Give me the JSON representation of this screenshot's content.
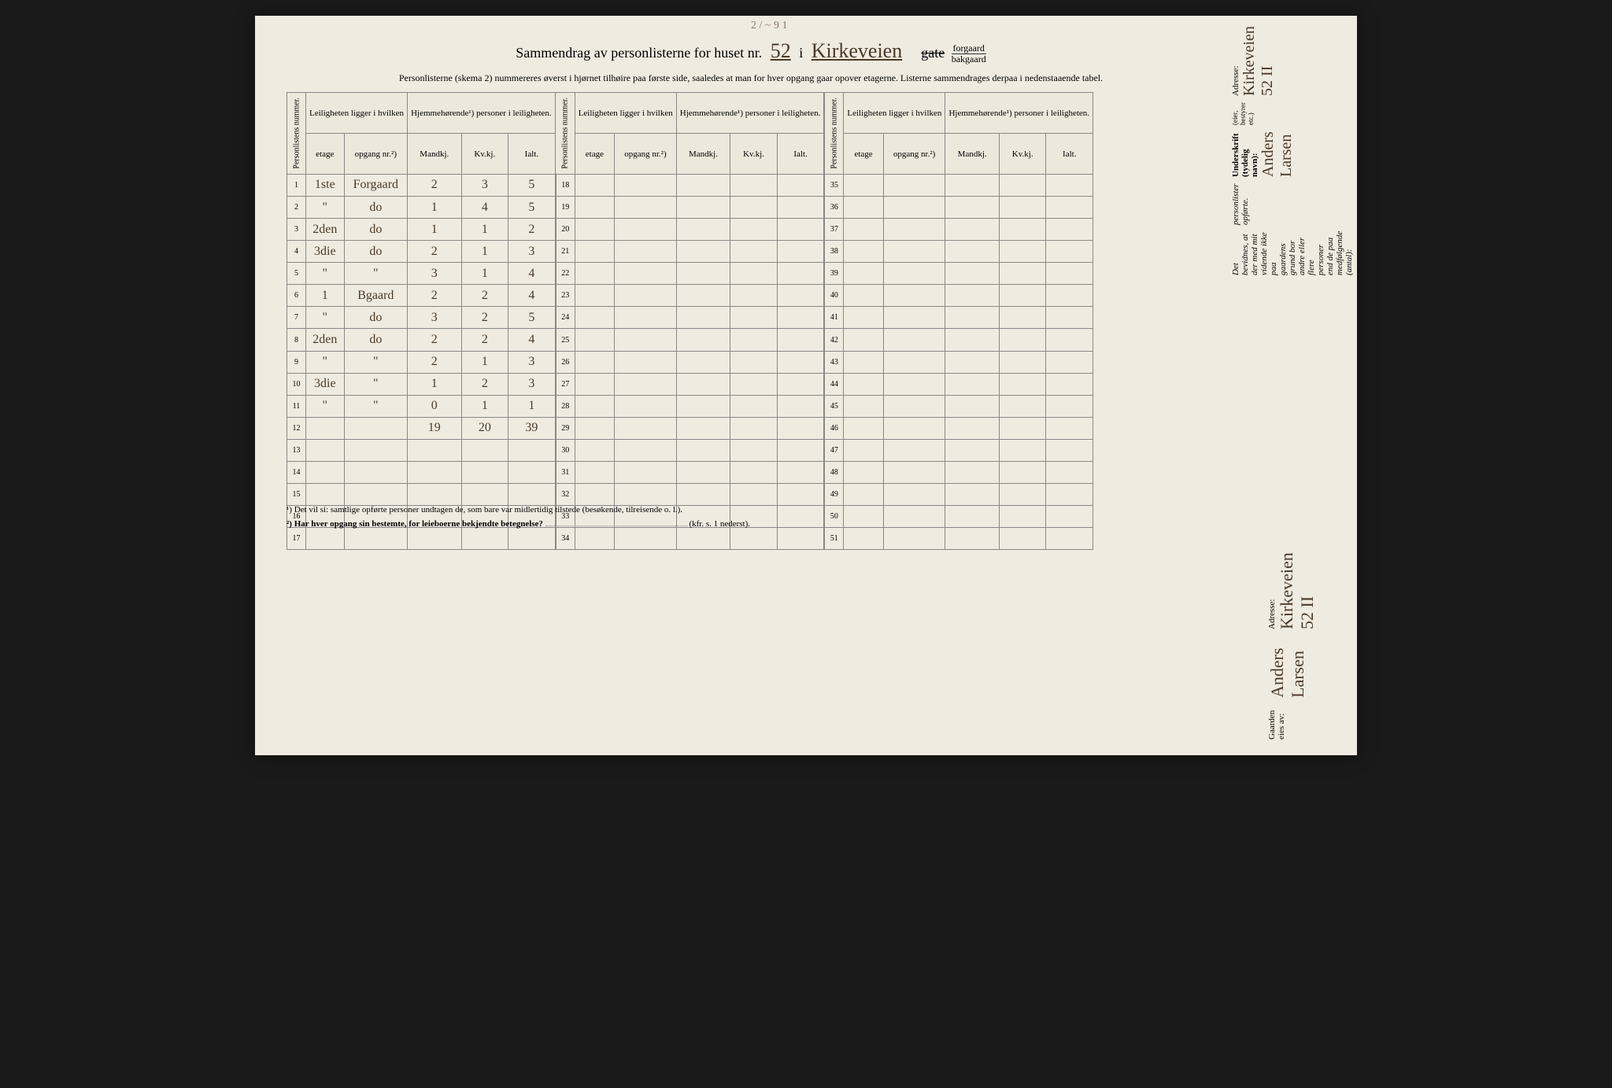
{
  "header": {
    "title_prefix": "Sammendrag av personlisterne for huset nr.",
    "house_number": "52",
    "title_mid": "i",
    "street_name": "Kirkeveien",
    "gate_label": "gate",
    "forgaard": "forgaard",
    "bakgaard": "bakgaard",
    "instructions": "Personlisterne (skema 2) nummereres øverst i hjørnet tilhøire paa første side, saaledes at man for hver opgang gaar opover etagerne. Listerne sammendrages derpaa i nedenstaaende tabel."
  },
  "table_headers": {
    "personlistens": "Personlistens nummer.",
    "leiligheten_group": "Leiligheten ligger i hvilken",
    "hjemme_group": "Hjemmehørende¹) personer i leiligheten.",
    "etage": "etage",
    "opgang": "opgang nr.²)",
    "mandkj": "Mandkj.",
    "kvkj": "Kv.kj.",
    "ialt": "Ialt."
  },
  "rows_col1": [
    {
      "n": "1",
      "etage": "1ste",
      "opgang": "Forgaard",
      "m": "2",
      "k": "3",
      "i": "5"
    },
    {
      "n": "2",
      "etage": "\"",
      "opgang": "do",
      "m": "1",
      "k": "4",
      "i": "5"
    },
    {
      "n": "3",
      "etage": "2den",
      "opgang": "do",
      "m": "1",
      "k": "1",
      "i": "2"
    },
    {
      "n": "4",
      "etage": "3die",
      "opgang": "do",
      "m": "2",
      "k": "1",
      "i": "3"
    },
    {
      "n": "5",
      "etage": "\"",
      "opgang": "\"",
      "m": "3",
      "k": "1",
      "i": "4"
    },
    {
      "n": "6",
      "etage": "1",
      "opgang": "Bgaard",
      "m": "2",
      "k": "2",
      "i": "4"
    },
    {
      "n": "7",
      "etage": "\"",
      "opgang": "do",
      "m": "3",
      "k": "2",
      "i": "5"
    },
    {
      "n": "8",
      "etage": "2den",
      "opgang": "do",
      "m": "2",
      "k": "2",
      "i": "4"
    },
    {
      "n": "9",
      "etage": "\"",
      "opgang": "\"",
      "m": "2",
      "k": "1",
      "i": "3"
    },
    {
      "n": "10",
      "etage": "3die",
      "opgang": "\"",
      "m": "1",
      "k": "2",
      "i": "3"
    },
    {
      "n": "11",
      "etage": "\"",
      "opgang": "\"",
      "m": "0",
      "k": "1",
      "i": "1"
    },
    {
      "n": "12",
      "etage": "",
      "opgang": "",
      "m": "19",
      "k": "20",
      "i": "39"
    },
    {
      "n": "13",
      "etage": "",
      "opgang": "",
      "m": "",
      "k": "",
      "i": ""
    },
    {
      "n": "14",
      "etage": "",
      "opgang": "",
      "m": "",
      "k": "",
      "i": ""
    },
    {
      "n": "15",
      "etage": "",
      "opgang": "",
      "m": "",
      "k": "",
      "i": ""
    },
    {
      "n": "16",
      "etage": "",
      "opgang": "",
      "m": "",
      "k": "",
      "i": ""
    },
    {
      "n": "17",
      "etage": "",
      "opgang": "",
      "m": "",
      "k": "",
      "i": ""
    }
  ],
  "rows_col2_nums": [
    "18",
    "19",
    "20",
    "21",
    "22",
    "23",
    "24",
    "25",
    "26",
    "27",
    "28",
    "29",
    "30",
    "31",
    "32",
    "33",
    "34"
  ],
  "rows_col3_nums": [
    "35",
    "36",
    "37",
    "38",
    "39",
    "40",
    "41",
    "42",
    "43",
    "44",
    "45",
    "46",
    "47",
    "48",
    "49",
    "50",
    "51"
  ],
  "footnotes": {
    "f1": "¹) Det vil si: samtlige opførte personer undtagen de, som bare var midlertidig tilstede (besøkende, tilreisende o. l.).",
    "f2_label": "²) Har hver opgang sin bestemte, for leieboerne bekjendte betegnelse?",
    "f2_suffix": "(kfr. s. 1 nederst)."
  },
  "sidebar": {
    "attestation": "Det bevidnes, at der med mit vidende ikke paa gaardens grund bor andre eller flere personer end de paa medfølgende (antal):",
    "personlister": "personlister opførte.",
    "underskrift_label": "Underskrift (tydelig navn):",
    "signature": "Anders Larsen",
    "eier_note": "(eier, bestyrer etc.)",
    "adresse_label": "Adresse:",
    "adresse_value": "Kirkeveien 52 II"
  },
  "bottom": {
    "gaarden_label": "Gaarden eies av:",
    "owner": "Anders Larsen",
    "adresse_label": "Adresse:",
    "adresse_value": "Kirkeveien 52 II"
  },
  "top_marks": "2 / ~ 9 1"
}
